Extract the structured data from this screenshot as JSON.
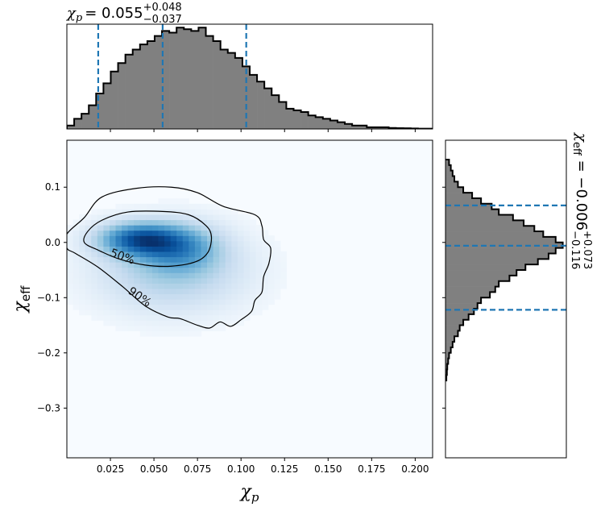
{
  "chart_data": [
    {
      "type": "heatmap",
      "panel": "joint",
      "xlabel_main": "χ",
      "xlabel_sub": "p",
      "ylabel_main": "χ",
      "ylabel_sub": "eff",
      "xlim": [
        0.0,
        0.21
      ],
      "ylim": [
        -0.39,
        0.185
      ],
      "x_ticks": [
        0.025,
        0.05,
        0.075,
        0.1,
        0.125,
        0.15,
        0.175,
        0.2
      ],
      "x_tick_labels": [
        "0.025",
        "0.050",
        "0.075",
        "0.100",
        "0.125",
        "0.150",
        "0.175",
        "0.200"
      ],
      "y_ticks": [
        0.1,
        0.0,
        -0.1,
        -0.2,
        -0.3
      ],
      "y_tick_labels": [
        "0.1",
        "0.0",
        "−0.1",
        "−0.2",
        "−0.3"
      ],
      "colormap": "Blues",
      "density_peak": {
        "x": 0.04,
        "y": 0.005
      },
      "contours": [
        {
          "label": "50%",
          "label_at": {
            "x": 0.032,
            "y": -0.025
          },
          "points": [
            [
              0.012,
              0.02
            ],
            [
              0.02,
              0.04
            ],
            [
              0.035,
              0.055
            ],
            [
              0.055,
              0.056
            ],
            [
              0.07,
              0.05
            ],
            [
              0.08,
              0.03
            ],
            [
              0.083,
              0.01
            ],
            [
              0.081,
              -0.018
            ],
            [
              0.074,
              -0.035
            ],
            [
              0.06,
              -0.043
            ],
            [
              0.045,
              -0.041
            ],
            [
              0.03,
              -0.03
            ],
            [
              0.018,
              -0.014
            ],
            [
              0.01,
              0.0
            ]
          ]
        },
        {
          "label": "90%",
          "label_at": {
            "x": 0.042,
            "y": -0.098
          },
          "points": [
            [
              0.0,
              0.015
            ],
            [
              0.01,
              0.045
            ],
            [
              0.02,
              0.082
            ],
            [
              0.04,
              0.098
            ],
            [
              0.06,
              0.1
            ],
            [
              0.075,
              0.09
            ],
            [
              0.09,
              0.065
            ],
            [
              0.108,
              0.05
            ],
            [
              0.112,
              0.03
            ],
            [
              0.113,
              0.005
            ],
            [
              0.117,
              -0.01
            ],
            [
              0.116,
              -0.038
            ],
            [
              0.113,
              -0.062
            ],
            [
              0.112,
              -0.09
            ],
            [
              0.108,
              -0.105
            ],
            [
              0.106,
              -0.125
            ],
            [
              0.1,
              -0.14
            ],
            [
              0.094,
              -0.152
            ],
            [
              0.088,
              -0.144
            ],
            [
              0.082,
              -0.155
            ],
            [
              0.075,
              -0.15
            ],
            [
              0.065,
              -0.138
            ],
            [
              0.058,
              -0.135
            ],
            [
              0.045,
              -0.115
            ],
            [
              0.032,
              -0.08
            ],
            [
              0.018,
              -0.045
            ],
            [
              0.005,
              -0.02
            ],
            [
              0.0,
              -0.01
            ]
          ]
        }
      ]
    },
    {
      "type": "bar",
      "panel": "marginal-top",
      "title_main": "χ",
      "title_sub": "p",
      "title_value": "= 0.055",
      "title_sup": "+0.048",
      "title_inf": "−0.037",
      "xlim": [
        0.0,
        0.21
      ],
      "bin_width": 0.0042,
      "bin_start": 0.0,
      "values": [
        2,
        6,
        9,
        14,
        21,
        27,
        34,
        39,
        44,
        47,
        50,
        52,
        55,
        58,
        57,
        60,
        59,
        58,
        60,
        55,
        52,
        47,
        45,
        42,
        37,
        32,
        28,
        24,
        20,
        16,
        12,
        11,
        10,
        8,
        7,
        6,
        5,
        4,
        3,
        2,
        2,
        1,
        1,
        1,
        0.6,
        0.5,
        0.4,
        0.3,
        0.2,
        0.2
      ],
      "ymax": 62,
      "quantiles": [
        0.018,
        0.055,
        0.103
      ]
    },
    {
      "type": "bar",
      "panel": "marginal-right",
      "orientation": "horizontal",
      "title_main": "χ",
      "title_sub": "eff",
      "title_value": " = −0.006",
      "title_sup": "+0.073",
      "title_inf": "−0.116",
      "ylim": [
        -0.39,
        0.185
      ],
      "bin_width": 0.01,
      "bin_start": -0.25,
      "values": [
        0.5,
        0.8,
        1,
        1.5,
        2,
        3,
        4,
        5,
        7,
        8,
        10,
        13,
        16,
        18,
        20,
        25,
        28,
        30,
        36,
        40,
        45,
        52,
        58,
        62,
        66,
        62,
        55,
        50,
        44,
        38,
        30,
        26,
        20,
        15,
        10,
        7,
        5,
        4,
        3,
        2
      ],
      "xmax": 68,
      "quantiles": [
        -0.122,
        -0.006,
        0.067
      ]
    }
  ],
  "colors": {
    "hist_fill": "#808080",
    "hist_edge": "#000000",
    "quantile_line": "#1f77b4",
    "contour_line": "#000000",
    "cmap_low": "#f7fbff",
    "cmap_high": "#08306b"
  }
}
